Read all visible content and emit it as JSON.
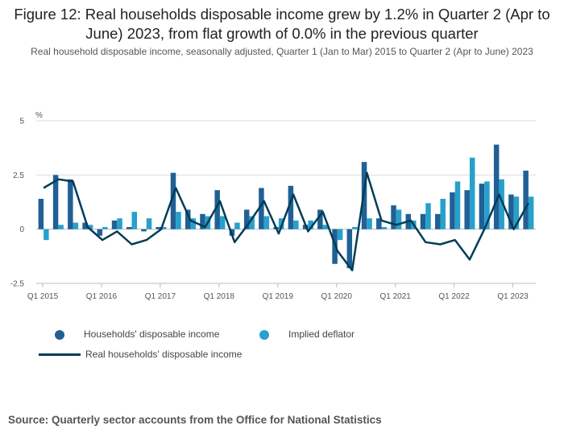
{
  "title": "Figure 12: Real households disposable income grew by 1.2% in Quarter 2 (Apr to June) 2023, from flat growth of 0.0% in the previous quarter",
  "subtitle": "Real household disposable income, seasonally adjusted, Quarter 1 (Jan to Mar) 2015 to Quarter 2 (Apr to June) 2023",
  "source": "Source: Quarterly sector accounts from the Office for National Statistics",
  "colors": {
    "income": "#206095",
    "deflator": "#27a0cc",
    "real": "#003c57",
    "grid": "#dddddd",
    "axis": "#bbbbbb"
  },
  "chart_data": {
    "type": "bar",
    "ylabel": "%",
    "ylim": [
      -2.5,
      5
    ],
    "yticks": [
      -2.5,
      0,
      2.5,
      5
    ],
    "ytick_labels": [
      "-2.5",
      "0",
      "2.5",
      "5"
    ],
    "categories": [
      "Q1 2015",
      "Q2 2015",
      "Q3 2015",
      "Q4 2015",
      "Q1 2016",
      "Q2 2016",
      "Q3 2016",
      "Q4 2016",
      "Q1 2017",
      "Q2 2017",
      "Q3 2017",
      "Q4 2017",
      "Q1 2018",
      "Q2 2018",
      "Q3 2018",
      "Q4 2018",
      "Q1 2019",
      "Q2 2019",
      "Q3 2019",
      "Q4 2019",
      "Q1 2020",
      "Q2 2020",
      "Q3 2020",
      "Q4 2020",
      "Q1 2021",
      "Q2 2021",
      "Q3 2021",
      "Q4 2021",
      "Q1 2022",
      "Q2 2022",
      "Q3 2022",
      "Q4 2022",
      "Q1 2023",
      "Q2 2023"
    ],
    "xtick_labels": [
      "Q1 2015",
      "Q1 2016",
      "Q1 2017",
      "Q1 2018",
      "Q1 2019",
      "Q1 2020",
      "Q1 2021",
      "Q1 2022",
      "Q1 2023"
    ],
    "xtick_every": 4,
    "series": [
      {
        "name": "Households' disposable income",
        "kind": "bar",
        "values": [
          1.4,
          2.5,
          2.3,
          0.3,
          -0.3,
          0.4,
          0.1,
          -0.1,
          0.1,
          2.6,
          0.9,
          0.7,
          1.8,
          -0.3,
          0.9,
          1.9,
          0.1,
          2.0,
          0.2,
          0.9,
          -1.6,
          -1.8,
          3.1,
          0.5,
          1.1,
          0.7,
          0.7,
          0.7,
          1.7,
          1.8,
          2.1,
          3.9,
          1.6,
          2.7
        ]
      },
      {
        "name": "Implied deflator",
        "kind": "bar",
        "values": [
          -0.5,
          0.2,
          0.3,
          0.2,
          0.1,
          0.5,
          0.8,
          0.5,
          0.1,
          0.8,
          0.5,
          0.6,
          0.6,
          0.3,
          0.6,
          0.6,
          0.5,
          0.4,
          0.4,
          0.2,
          -0.5,
          0.1,
          0.5,
          0.1,
          0.9,
          0.4,
          1.2,
          1.4,
          2.2,
          3.3,
          2.2,
          2.3,
          1.5,
          1.5
        ]
      },
      {
        "name": "Real households' disposable income",
        "kind": "line",
        "values": [
          1.9,
          2.3,
          2.2,
          0.1,
          -0.5,
          -0.1,
          -0.7,
          -0.5,
          0.0,
          1.9,
          0.4,
          0.1,
          1.3,
          -0.6,
          0.3,
          1.3,
          -0.2,
          1.6,
          -0.1,
          0.8,
          -1.0,
          -1.9,
          2.6,
          0.4,
          0.2,
          0.4,
          -0.6,
          -0.7,
          -0.5,
          -1.4,
          0.0,
          1.6,
          0.0,
          1.2
        ]
      }
    ]
  },
  "legend": {
    "income_label": "Households' disposable income",
    "deflator_label": "Implied deflator",
    "real_label": "Real households' disposable income"
  }
}
